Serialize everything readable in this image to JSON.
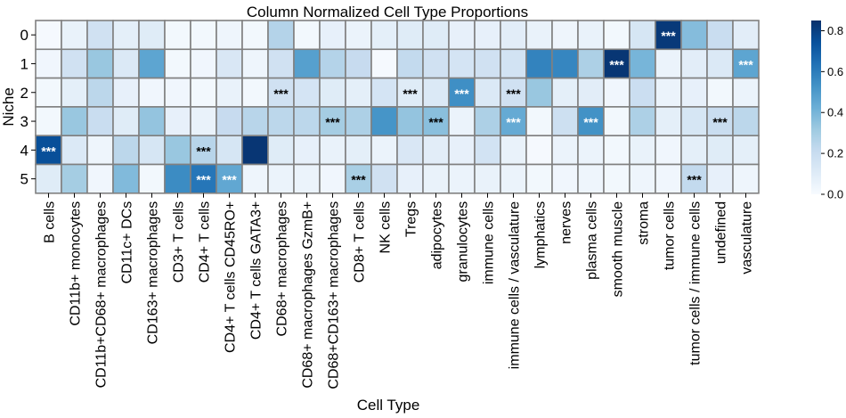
{
  "chart_data": {
    "type": "heatmap",
    "title": "Column Normalized Cell Type Proportions",
    "xlabel": "Cell Type",
    "ylabel": "Niche",
    "rows": [
      "0",
      "1",
      "2",
      "3",
      "4",
      "5"
    ],
    "columns": [
      "B cells",
      "CD11b+ monocytes",
      "CD11b+CD68+ macrophages",
      "CD11c+ DCs",
      "CD163+ macrophages",
      "CD3+ T cells",
      "CD4+ T cells",
      "CD4+ T cells CD45RO+",
      "CD4+ T cells GATA3+",
      "CD68+ macrophages",
      "CD68+ macrophages GzmB+",
      "CD68+CD163+ macrophages",
      "CD8+ T cells",
      "NK cells",
      "Tregs",
      "adipocytes",
      "granulocytes",
      "immune cells",
      "immune cells / vasculature",
      "lymphatics",
      "nerves",
      "plasma cells",
      "smooth muscle",
      "stroma",
      "tumor cells",
      "tumor cells / immune cells",
      "undefined",
      "vasculature"
    ],
    "values": [
      [
        0.01,
        0.06,
        0.17,
        0.08,
        0.1,
        0.02,
        0.02,
        0.04,
        0.02,
        0.26,
        0.02,
        0.07,
        0.05,
        0.08,
        0.1,
        0.1,
        0.07,
        0.07,
        0.09,
        0.06,
        0.04,
        0.06,
        0.02,
        0.14,
        0.82,
        0.37,
        0.2,
        0.09
      ],
      [
        0.03,
        0.17,
        0.33,
        0.12,
        0.46,
        0.02,
        0.03,
        0.13,
        0.04,
        0.17,
        0.48,
        0.26,
        0.21,
        0.01,
        0.22,
        0.17,
        0.15,
        0.17,
        0.16,
        0.58,
        0.57,
        0.28,
        0.83,
        0.4,
        0.05,
        0.09,
        0.12,
        0.46
      ],
      [
        0.02,
        0.08,
        0.24,
        0.07,
        0.03,
        0.03,
        0.02,
        0.06,
        0.02,
        0.17,
        0.15,
        0.1,
        0.08,
        0.15,
        0.1,
        0.12,
        0.54,
        0.12,
        0.17,
        0.33,
        0.08,
        0.09,
        0.03,
        0.19,
        0.05,
        0.07,
        0.02,
        0.05
      ],
      [
        0.02,
        0.33,
        0.2,
        0.1,
        0.34,
        0.07,
        0.06,
        0.21,
        0.25,
        0.24,
        0.24,
        0.3,
        0.28,
        0.52,
        0.34,
        0.36,
        0.05,
        0.28,
        0.44,
        0.02,
        0.18,
        0.53,
        0.02,
        0.28,
        0.08,
        0.14,
        0.2,
        0.24
      ],
      [
        0.75,
        0.12,
        0.04,
        0.24,
        0.14,
        0.33,
        0.25,
        0.14,
        0.83,
        0.1,
        0.07,
        0.06,
        0.08,
        0.05,
        0.13,
        0.09,
        0.07,
        0.16,
        0.06,
        0.01,
        0.05,
        0.05,
        0.02,
        0.06,
        0.03,
        0.08,
        0.1,
        0.08
      ],
      [
        0.1,
        0.3,
        0.03,
        0.38,
        0.02,
        0.55,
        0.62,
        0.45,
        0.04,
        0.05,
        0.05,
        0.03,
        0.29,
        0.17,
        0.07,
        0.06,
        0.05,
        0.06,
        0.05,
        0.02,
        0.03,
        0.04,
        0.02,
        0.04,
        0.03,
        0.22,
        0.07,
        0.04
      ]
    ],
    "annotations": [
      {
        "row": 0,
        "col": 24,
        "text": "***"
      },
      {
        "row": 1,
        "col": 22,
        "text": "***"
      },
      {
        "row": 1,
        "col": 27,
        "text": "***"
      },
      {
        "row": 2,
        "col": 9,
        "text": "***"
      },
      {
        "row": 2,
        "col": 14,
        "text": "***"
      },
      {
        "row": 2,
        "col": 16,
        "text": "***"
      },
      {
        "row": 2,
        "col": 18,
        "text": "***"
      },
      {
        "row": 3,
        "col": 11,
        "text": "***"
      },
      {
        "row": 3,
        "col": 15,
        "text": "***"
      },
      {
        "row": 3,
        "col": 18,
        "text": "***"
      },
      {
        "row": 3,
        "col": 21,
        "text": "***"
      },
      {
        "row": 3,
        "col": 26,
        "text": "***"
      },
      {
        "row": 4,
        "col": 0,
        "text": "***"
      },
      {
        "row": 4,
        "col": 6,
        "text": "***"
      },
      {
        "row": 5,
        "col": 6,
        "text": "***"
      },
      {
        "row": 5,
        "col": 7,
        "text": "***"
      },
      {
        "row": 5,
        "col": 12,
        "text": "***"
      },
      {
        "row": 5,
        "col": 25,
        "text": "***"
      }
    ],
    "colorbar": {
      "range": [
        0.0,
        0.85
      ],
      "ticks": [
        "0.0",
        "0.2",
        "0.4",
        "0.6",
        "0.8"
      ],
      "tick_values": [
        0.0,
        0.2,
        0.4,
        0.6,
        0.8
      ],
      "colormap": "Blues",
      "low_color": "#f7fbff",
      "high_color": "#08306b"
    },
    "cell_border_color": "#808080",
    "legend": "none",
    "grid": false
  }
}
